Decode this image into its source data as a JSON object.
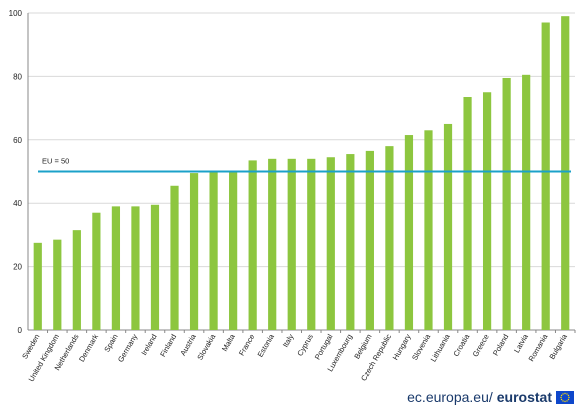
{
  "chart_data": {
    "type": "bar",
    "categories": [
      "Sweden",
      "United Kingdom",
      "Netherlands",
      "Denmark",
      "Spain",
      "Germany",
      "Ireland",
      "Finland",
      "Austria",
      "Slovakia",
      "Malta",
      "France",
      "Estonia",
      "Italy",
      "Cyprus",
      "Portugal",
      "Luxembourg",
      "Belgium",
      "Czech Republic",
      "Hungary",
      "Slovenia",
      "Lithuania",
      "Croatia",
      "Greece",
      "Poland",
      "Latvia",
      "Romania",
      "Bulgaria"
    ],
    "values": [
      27.5,
      28.5,
      31.5,
      37,
      39,
      39,
      39.5,
      45.5,
      49.5,
      50,
      50,
      53.5,
      54,
      54,
      54,
      54.5,
      55.5,
      56.5,
      58,
      61.5,
      63,
      65,
      73.5,
      75,
      79.5,
      80.5,
      97,
      99
    ],
    "ylim": [
      0,
      100
    ],
    "yticks": [
      "0",
      "20",
      "40",
      "60",
      "80",
      "100"
    ],
    "grid": true,
    "bar_color": "#8dc63f",
    "reference_line": {
      "label": "EU = 50",
      "value": 50,
      "color": "#1ba1c9"
    }
  },
  "footer": {
    "site": "ec.europa.eu/",
    "brand": "eurostat"
  }
}
